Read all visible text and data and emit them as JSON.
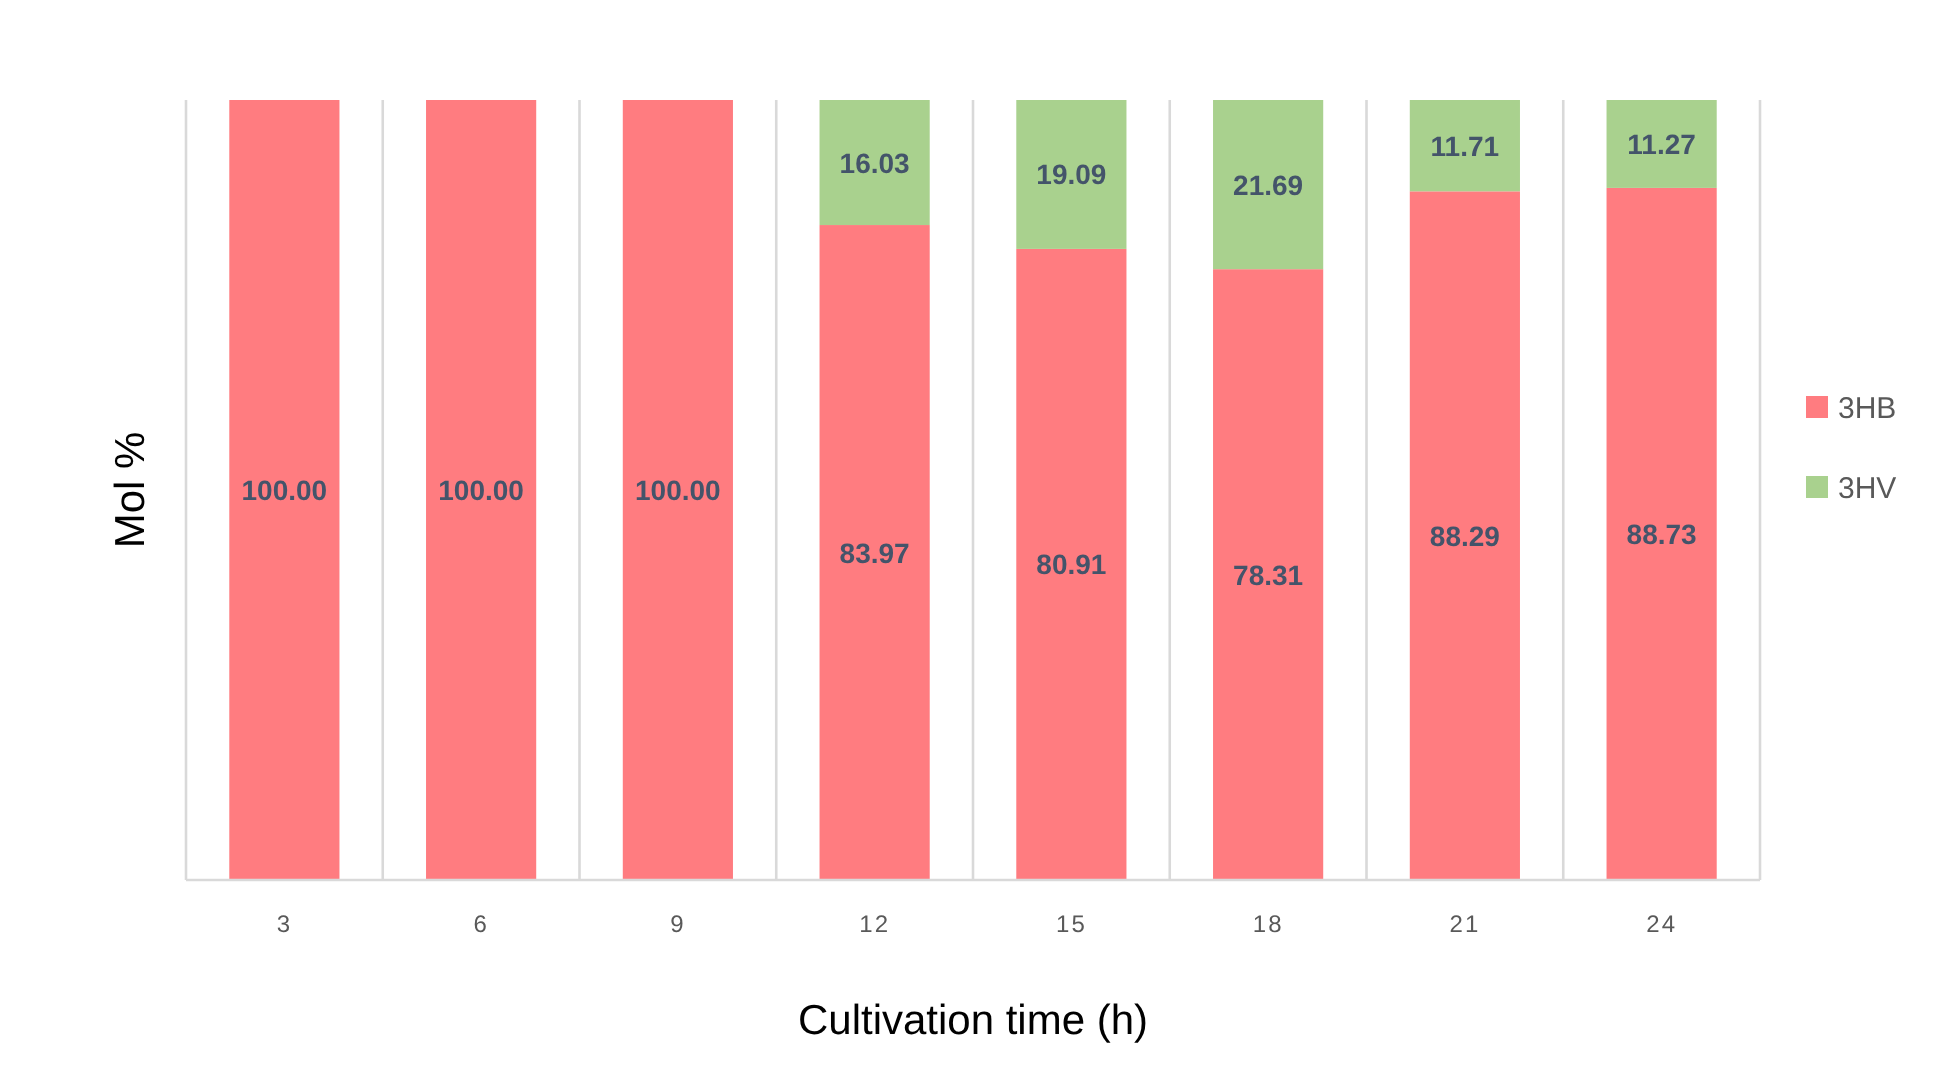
{
  "chart_data": {
    "type": "bar",
    "stacked": true,
    "xlabel": "Cultivation time (h)",
    "ylabel": "Mol %",
    "categories": [
      "3",
      "6",
      "9",
      "12",
      "15",
      "18",
      "21",
      "24"
    ],
    "series": [
      {
        "name": "3HB",
        "color": "#ff7c80",
        "values": [
          100.0,
          100.0,
          100.0,
          83.97,
          80.91,
          78.31,
          88.29,
          88.73
        ],
        "value_labels": [
          "100.00",
          "100.00",
          "100.00",
          "83.97",
          "80.91",
          "78.31",
          "88.29",
          "88.73"
        ]
      },
      {
        "name": "3HV",
        "color": "#a9d18e",
        "values": [
          null,
          null,
          null,
          16.03,
          19.09,
          21.69,
          11.71,
          11.27
        ],
        "value_labels": [
          null,
          null,
          null,
          "16.03",
          "19.09",
          "21.69",
          "11.71",
          "11.27"
        ]
      }
    ],
    "tick_labels": "x",
    "grid": "x",
    "legend": "right"
  }
}
